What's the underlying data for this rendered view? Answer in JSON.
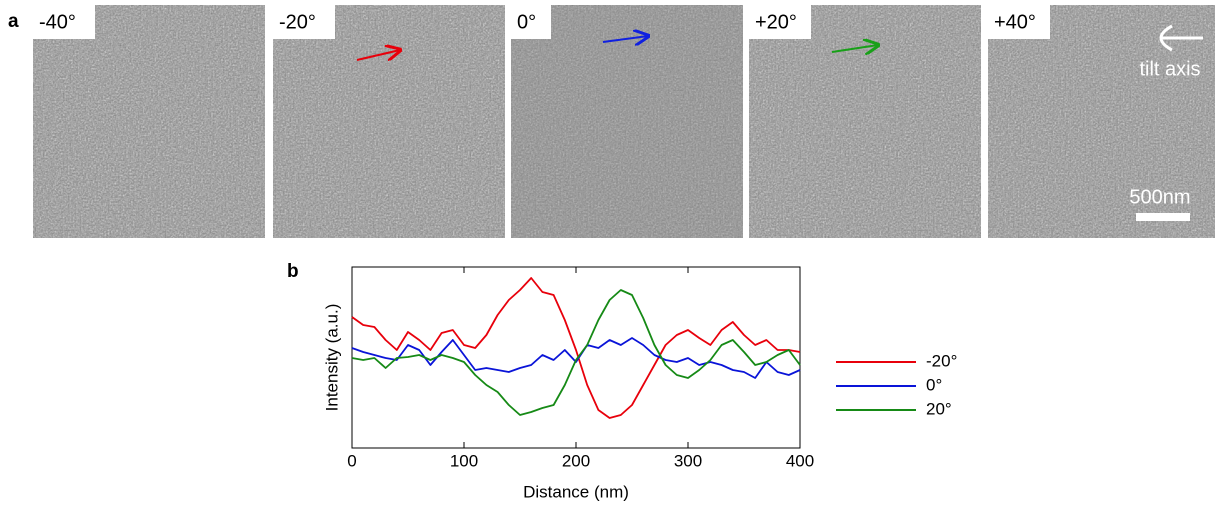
{
  "panel_a": {
    "label": "a",
    "images": [
      "-40°",
      "-20°",
      "0°",
      "+20°",
      "+40°"
    ],
    "tilt_axis": "tilt axis",
    "scale_bar": "500nm"
  },
  "chart_data": {
    "type": "line",
    "panel_label": "b",
    "x_label": "Distance (nm)",
    "y_label": "Intensity (a.u.)",
    "x": [
      0,
      10,
      20,
      30,
      40,
      50,
      60,
      70,
      80,
      90,
      100,
      110,
      120,
      130,
      140,
      150,
      160,
      170,
      180,
      190,
      200,
      210,
      220,
      230,
      240,
      250,
      260,
      270,
      280,
      290,
      300,
      310,
      320,
      330,
      340,
      350,
      360,
      370,
      380,
      390,
      400
    ],
    "xlim": [
      0,
      400
    ],
    "xticks": [
      0,
      100,
      200,
      300,
      400
    ],
    "ylim": [
      0,
      181
    ],
    "series": [
      {
        "name": "-20°",
        "color": "#e8000b",
        "values": [
          131,
          123,
          121,
          108,
          98,
          116,
          108,
          98,
          115,
          118,
          103,
          100,
          113,
          133,
          148,
          158,
          170,
          156,
          153,
          128,
          98,
          63,
          38,
          30,
          33,
          43,
          63,
          83,
          103,
          113,
          118,
          110,
          103,
          118,
          126,
          113,
          103,
          108,
          98,
          98,
          96
        ]
      },
      {
        "name": "0°",
        "color": "#0a14d8",
        "values": [
          100,
          96,
          93,
          90,
          88,
          103,
          98,
          83,
          96,
          108,
          93,
          78,
          80,
          78,
          76,
          80,
          83,
          93,
          88,
          98,
          86,
          103,
          100,
          108,
          103,
          110,
          103,
          93,
          88,
          86,
          90,
          83,
          86,
          83,
          78,
          76,
          70,
          86,
          76,
          73,
          78
        ]
      },
      {
        "name": "20°",
        "color": "#168a16",
        "values": [
          90,
          88,
          90,
          80,
          90,
          91,
          93,
          88,
          93,
          90,
          86,
          73,
          63,
          56,
          43,
          33,
          36,
          40,
          43,
          63,
          88,
          103,
          128,
          148,
          158,
          153,
          130,
          103,
          83,
          73,
          70,
          78,
          88,
          103,
          108,
          96,
          83,
          86,
          93,
          98,
          83
        ]
      }
    ]
  }
}
